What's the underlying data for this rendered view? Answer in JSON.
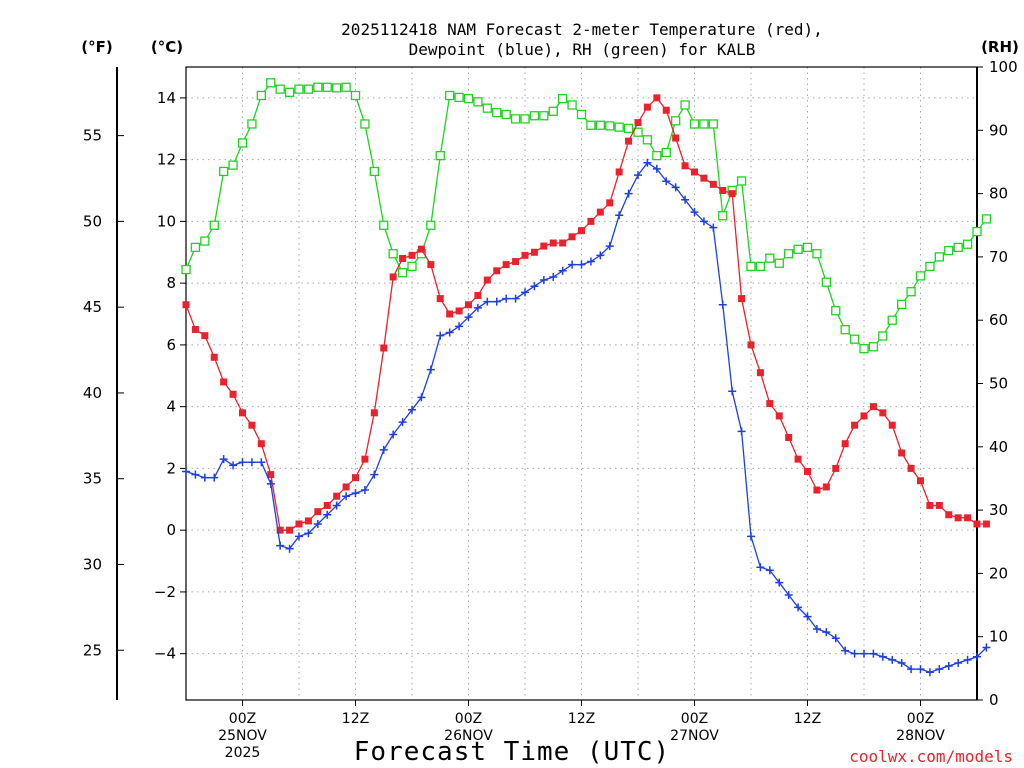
{
  "colors": {
    "temp": "#e8232d",
    "dewp": "#1f3fe0",
    "rh": "#1ed41e",
    "credit": "#e8232d"
  },
  "chart_data": {
    "type": "line",
    "title_line1": "2025112418 NAM Forecast 2-meter Temperature (red),",
    "title_line2": "Dewpoint (blue), RH (green) for KALB",
    "unit_left_f": "(°F)",
    "unit_left_c": "(°C)",
    "unit_right": "(RH)",
    "xlabel": "Forecast Time (UTC)",
    "credit": "coolwx.com/models",
    "x_axis": {
      "start_hour": 18,
      "end_hour": 102,
      "step_hours": 1
    },
    "celsius_axis": {
      "min": -5.5,
      "max": 15,
      "ticks": [
        -4,
        -2,
        0,
        2,
        4,
        6,
        8,
        10,
        12,
        14
      ]
    },
    "fahrenheit_axis": {
      "ticks": [
        25,
        30,
        35,
        40,
        45,
        50,
        55
      ]
    },
    "rh_axis": {
      "min": 0,
      "max": 100,
      "ticks": [
        0,
        10,
        20,
        30,
        40,
        50,
        60,
        70,
        80,
        90,
        100
      ]
    },
    "x_ticks": [
      {
        "hour": 24,
        "lines": [
          "00Z",
          "25NOV",
          "2025"
        ]
      },
      {
        "hour": 36,
        "lines": [
          "12Z"
        ]
      },
      {
        "hour": 48,
        "lines": [
          "00Z",
          "26NOV"
        ]
      },
      {
        "hour": 60,
        "lines": [
          "12Z"
        ]
      },
      {
        "hour": 72,
        "lines": [
          "00Z",
          "27NOV"
        ]
      },
      {
        "hour": 84,
        "lines": [
          "12Z"
        ]
      },
      {
        "hour": 96,
        "lines": [
          "00Z",
          "28NOV"
        ]
      }
    ],
    "series": [
      {
        "name": "2-meter Temperature",
        "unit": "C",
        "values": [
          7.3,
          6.5,
          6.3,
          5.6,
          4.8,
          4.4,
          3.8,
          3.4,
          2.8,
          1.8,
          0.0,
          0.0,
          0.2,
          0.3,
          0.6,
          0.8,
          1.1,
          1.4,
          1.7,
          2.3,
          3.8,
          5.9,
          8.2,
          8.8,
          8.9,
          9.1,
          8.6,
          7.5,
          7.0,
          7.1,
          7.3,
          7.6,
          8.1,
          8.4,
          8.6,
          8.7,
          8.9,
          9.0,
          9.2,
          9.3,
          9.3,
          9.5,
          9.7,
          10.0,
          10.3,
          10.6,
          11.6,
          12.6,
          13.2,
          13.7,
          14.0,
          13.6,
          12.7,
          11.8,
          11.6,
          11.4,
          11.2,
          11.0,
          10.9,
          7.5,
          6.0,
          5.1,
          4.1,
          3.7,
          3.0,
          2.3,
          1.9,
          1.3,
          1.4,
          2.0,
          2.8,
          3.4,
          3.7,
          4.0,
          3.8,
          3.4,
          2.5,
          2.0,
          1.6,
          0.8,
          0.8,
          0.5,
          0.4,
          0.4,
          0.2,
          0.2
        ]
      },
      {
        "name": "Dewpoint",
        "unit": "C",
        "values": [
          1.9,
          1.8,
          1.7,
          1.7,
          2.3,
          2.1,
          2.2,
          2.2,
          2.2,
          1.5,
          -0.5,
          -0.6,
          -0.2,
          -0.1,
          0.2,
          0.5,
          0.8,
          1.1,
          1.2,
          1.3,
          1.8,
          2.6,
          3.1,
          3.5,
          3.9,
          4.3,
          5.2,
          6.3,
          6.4,
          6.6,
          6.9,
          7.2,
          7.4,
          7.4,
          7.5,
          7.5,
          7.7,
          7.9,
          8.1,
          8.2,
          8.4,
          8.6,
          8.6,
          8.7,
          8.9,
          9.2,
          10.2,
          10.9,
          11.5,
          11.9,
          11.7,
          11.3,
          11.1,
          10.7,
          10.3,
          10.0,
          9.8,
          7.3,
          4.5,
          3.2,
          -0.2,
          -1.2,
          -1.3,
          -1.7,
          -2.1,
          -2.5,
          -2.8,
          -3.2,
          -3.3,
          -3.5,
          -3.9,
          -4.0,
          -4.0,
          -4.0,
          -4.1,
          -4.2,
          -4.3,
          -4.5,
          -4.5,
          -4.6,
          -4.5,
          -4.4,
          -4.3,
          -4.2,
          -4.1,
          -3.8
        ]
      },
      {
        "name": "RH",
        "unit": "%",
        "values": [
          68,
          71.5,
          72.5,
          75,
          83.5,
          84.5,
          88,
          91,
          95.5,
          97.5,
          96.5,
          96,
          96.5,
          96.5,
          96.8,
          96.8,
          96.7,
          96.8,
          95.5,
          91,
          83.5,
          75,
          70.5,
          67.5,
          68.5,
          70.5,
          75,
          86,
          95.5,
          95.2,
          95,
          94.5,
          93.5,
          92.8,
          92.5,
          91.8,
          91.8,
          92.3,
          92.3,
          93,
          95,
          94,
          92.5,
          90.8,
          90.8,
          90.7,
          90.5,
          90.3,
          89.7,
          88.5,
          86,
          86.5,
          91.5,
          94,
          91,
          91,
          91,
          76.5,
          80.5,
          82,
          68.5,
          68.5,
          69.8,
          69,
          70.5,
          71.2,
          71.5,
          70.5,
          66,
          61.5,
          58.5,
          57,
          55.5,
          55.8,
          57.5,
          60,
          62.5,
          64.5,
          67,
          68.5,
          70,
          71,
          71.5,
          72,
          74,
          76
        ]
      }
    ]
  }
}
